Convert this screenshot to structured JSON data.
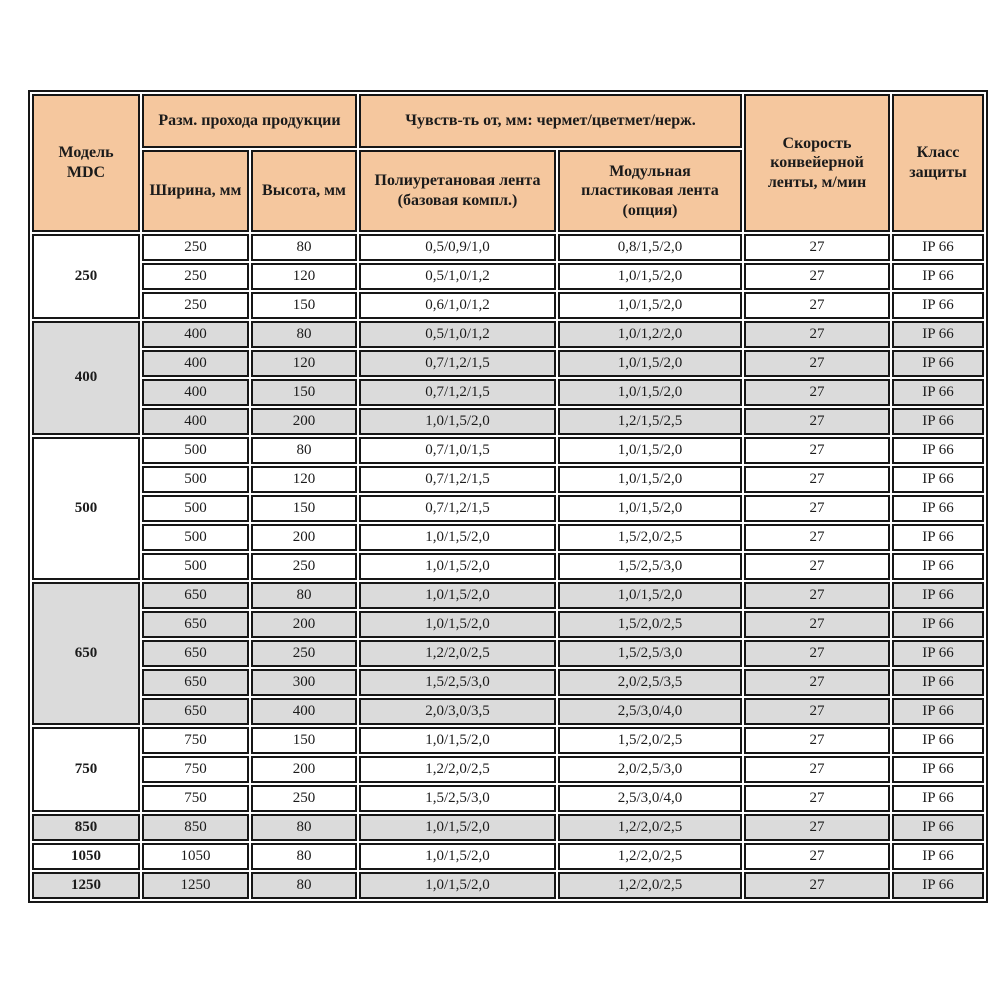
{
  "colors": {
    "header_bg": "#f5c79e",
    "row_gray": "#dbdbdb",
    "row_white": "#ffffff",
    "border": "#161616",
    "page_bg": "#ffffff"
  },
  "table": {
    "header": {
      "model": "Модель\nMDC",
      "passage": "Разм. прохода продукции",
      "width": "Ширина, мм",
      "height": "Высота, мм",
      "sensitivity": "Чувств-ть от, мм: чермет/цветмет/нерж.",
      "poly_belt": "Полиуретановая лента (базовая компл.)",
      "modular_belt": "Модульная пластиковая лента (опция)",
      "speed": "Скорость конвейерной ленты, м/мин",
      "protection": "Класс защиты"
    },
    "groups": [
      {
        "model": "250",
        "shade": "white",
        "rows": [
          {
            "width": "250",
            "height": "80",
            "poly": "0,5/0,9/1,0",
            "modular": "0,8/1,5/2,0",
            "speed": "27",
            "protection": "IP 66"
          },
          {
            "width": "250",
            "height": "120",
            "poly": "0,5/1,0/1,2",
            "modular": "1,0/1,5/2,0",
            "speed": "27",
            "protection": "IP 66"
          },
          {
            "width": "250",
            "height": "150",
            "poly": "0,6/1,0/1,2",
            "modular": "1,0/1,5/2,0",
            "speed": "27",
            "protection": "IP 66"
          }
        ]
      },
      {
        "model": "400",
        "shade": "gray",
        "rows": [
          {
            "width": "400",
            "height": "80",
            "poly": "0,5/1,0/1,2",
            "modular": "1,0/1,2/2,0",
            "speed": "27",
            "protection": "IP 66"
          },
          {
            "width": "400",
            "height": "120",
            "poly": "0,7/1,2/1,5",
            "modular": "1,0/1,5/2,0",
            "speed": "27",
            "protection": "IP 66"
          },
          {
            "width": "400",
            "height": "150",
            "poly": "0,7/1,2/1,5",
            "modular": "1,0/1,5/2,0",
            "speed": "27",
            "protection": "IP 66"
          },
          {
            "width": "400",
            "height": "200",
            "poly": "1,0/1,5/2,0",
            "modular": "1,2/1,5/2,5",
            "speed": "27",
            "protection": "IP 66"
          }
        ]
      },
      {
        "model": "500",
        "shade": "white",
        "rows": [
          {
            "width": "500",
            "height": "80",
            "poly": "0,7/1,0/1,5",
            "modular": "1,0/1,5/2,0",
            "speed": "27",
            "protection": "IP 66"
          },
          {
            "width": "500",
            "height": "120",
            "poly": "0,7/1,2/1,5",
            "modular": "1,0/1,5/2,0",
            "speed": "27",
            "protection": "IP 66"
          },
          {
            "width": "500",
            "height": "150",
            "poly": "0,7/1,2/1,5",
            "modular": "1,0/1,5/2,0",
            "speed": "27",
            "protection": "IP 66"
          },
          {
            "width": "500",
            "height": "200",
            "poly": "1,0/1,5/2,0",
            "modular": "1,5/2,0/2,5",
            "speed": "27",
            "protection": "IP 66"
          },
          {
            "width": "500",
            "height": "250",
            "poly": "1,0/1,5/2,0",
            "modular": "1,5/2,5/3,0",
            "speed": "27",
            "protection": "IP 66"
          }
        ]
      },
      {
        "model": "650",
        "shade": "gray",
        "rows": [
          {
            "width": "650",
            "height": "80",
            "poly": "1,0/1,5/2,0",
            "modular": "1,0/1,5/2,0",
            "speed": "27",
            "protection": "IP 66"
          },
          {
            "width": "650",
            "height": "200",
            "poly": "1,0/1,5/2,0",
            "modular": "1,5/2,0/2,5",
            "speed": "27",
            "protection": "IP 66"
          },
          {
            "width": "650",
            "height": "250",
            "poly": "1,2/2,0/2,5",
            "modular": "1,5/2,5/3,0",
            "speed": "27",
            "protection": "IP 66"
          },
          {
            "width": "650",
            "height": "300",
            "poly": "1,5/2,5/3,0",
            "modular": "2,0/2,5/3,5",
            "speed": "27",
            "protection": "IP 66"
          },
          {
            "width": "650",
            "height": "400",
            "poly": "2,0/3,0/3,5",
            "modular": "2,5/3,0/4,0",
            "speed": "27",
            "protection": "IP 66"
          }
        ]
      },
      {
        "model": "750",
        "shade": "white",
        "rows": [
          {
            "width": "750",
            "height": "150",
            "poly": "1,0/1,5/2,0",
            "modular": "1,5/2,0/2,5",
            "speed": "27",
            "protection": "IP 66"
          },
          {
            "width": "750",
            "height": "200",
            "poly": "1,2/2,0/2,5",
            "modular": "2,0/2,5/3,0",
            "speed": "27",
            "protection": "IP 66"
          },
          {
            "width": "750",
            "height": "250",
            "poly": "1,5/2,5/3,0",
            "modular": "2,5/3,0/4,0",
            "speed": "27",
            "protection": "IP 66"
          }
        ]
      },
      {
        "model": "850",
        "shade": "gray",
        "rows": [
          {
            "width": "850",
            "height": "80",
            "poly": "1,0/1,5/2,0",
            "modular": "1,2/2,0/2,5",
            "speed": "27",
            "protection": "IP 66"
          }
        ]
      },
      {
        "model": "1050",
        "shade": "white",
        "rows": [
          {
            "width": "1050",
            "height": "80",
            "poly": "1,0/1,5/2,0",
            "modular": "1,2/2,0/2,5",
            "speed": "27",
            "protection": "IP 66"
          }
        ]
      },
      {
        "model": "1250",
        "shade": "gray",
        "rows": [
          {
            "width": "1250",
            "height": "80",
            "poly": "1,0/1,5/2,0",
            "modular": "1,2/2,0/2,5",
            "speed": "27",
            "protection": "IP 66"
          }
        ]
      }
    ]
  }
}
